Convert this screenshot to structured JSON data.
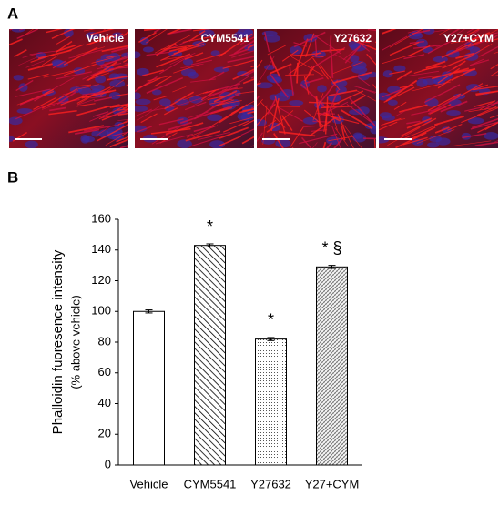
{
  "panel_a": {
    "label": "A",
    "images": [
      "Vehicle",
      "CYM5541",
      "Y27632",
      "Y27+CYM"
    ]
  },
  "panel_b": {
    "label": "B"
  },
  "chart_data": {
    "type": "bar",
    "y_label": [
      "Phalloidin fuoresence intensity",
      "(% above vehicle)"
    ],
    "categories": [
      "Vehicle",
      "CYM5541",
      "Y27632",
      "Y27+CYM"
    ],
    "values": [
      100,
      143,
      82,
      129
    ],
    "errors": [
      1,
      1,
      1,
      1
    ],
    "annotations": [
      null,
      "*",
      "*",
      "* §"
    ],
    "patterns": [
      "none",
      "hatch",
      "dots",
      "crosshatch"
    ],
    "color": "#000000",
    "ylim": [
      0,
      160
    ],
    "yticks": [
      0,
      20,
      40,
      60,
      80,
      100,
      120,
      140,
      160
    ],
    "grid": false
  }
}
